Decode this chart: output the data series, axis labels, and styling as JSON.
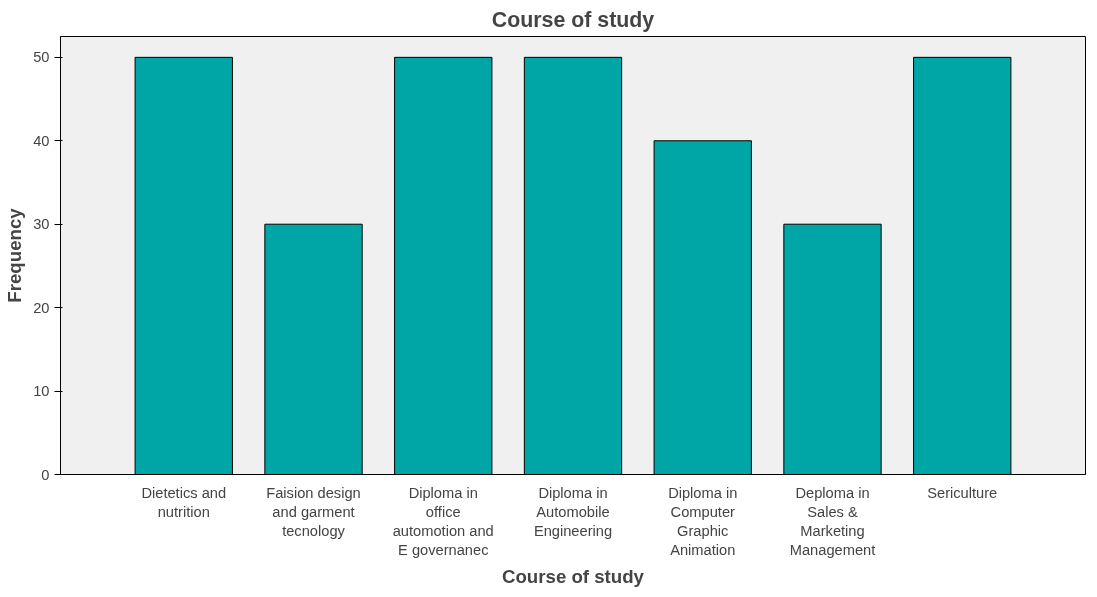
{
  "chart_data": {
    "type": "bar",
    "title": "Course of study",
    "xlabel": "Course of study",
    "ylabel": "Frequency",
    "categories": [
      "Dietetics and nutrition",
      "Faision design and garment tecnology",
      "Diploma in office automotion and E governanec",
      "Diploma in Automobile Engineering",
      "Diploma in Computer Graphic Animation",
      "Deploma in Sales & Marketing Management",
      "Sericulture"
    ],
    "values": [
      50,
      30,
      50,
      50,
      40,
      30,
      50
    ],
    "color": "#00a5a5",
    "ylim": [
      0,
      52.5
    ],
    "yticks": [
      0,
      10,
      20,
      30,
      40,
      50
    ],
    "grid": false
  }
}
